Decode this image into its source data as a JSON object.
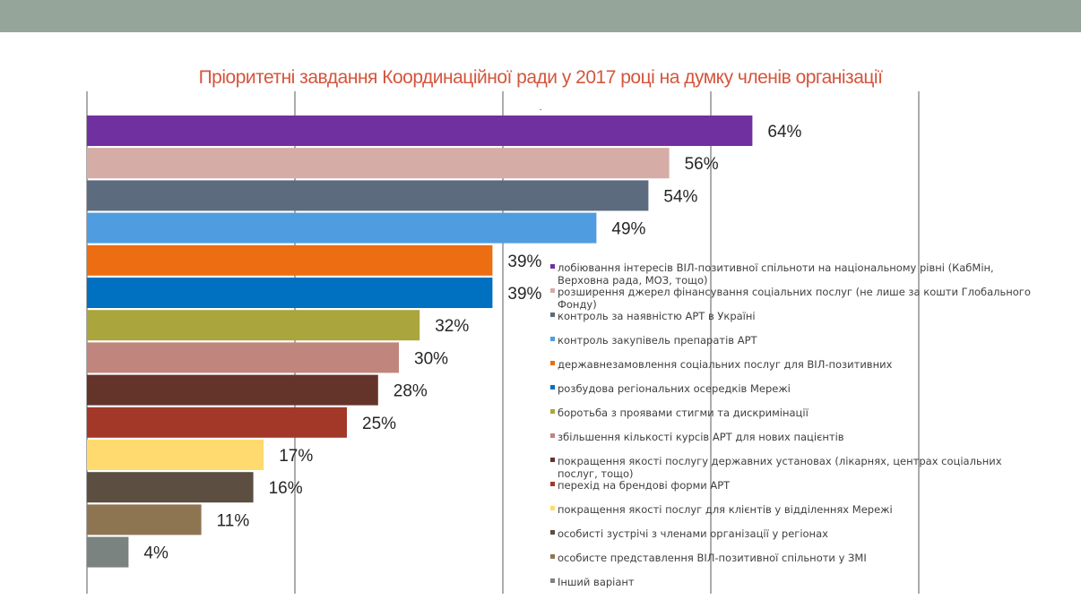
{
  "chart_data": {
    "type": "bar",
    "orientation": "horizontal",
    "title": "Пріоритетні завдання Координаційної ради у 2017 році на думку членів організації",
    "xlim": [
      0,
      80
    ],
    "grid": true,
    "legend_position": "right",
    "annotations": [
      "."
    ],
    "categories": [
      "лобіювання  інтересів  ВІЛ-позитивної  спільноти на національному  рівні (КабМін, Верховна рада, МОЗ, тощо)",
      "розширення джерел фінансування  соціальних послуг (не лише за кошти Глобального Фонду)",
      "контроль  за наявністю  АРТ в Україні",
      "контроль  закупівель  препаратів  АРТ",
      "державнезамовлення   соціальних послуг для ВІЛ-позитивних",
      "розбудова  регіональних  осередків Мережі",
      "боротьба  з проявами стигми та дискримінації",
      "збільшення  кількості курсів АРТ для нових пацієнтів",
      "покращення якості послугу державних установах (лікарнях, центрах  соціальних послуг, тощо)",
      "перехід  на брендові форми  АРТ",
      "покращення якості  послуг для клієнтів  у відділеннях Мережі",
      "особисті  зустрічі з членами  організації  у регіонах",
      "особисте  представлення  ВІЛ-позитивної  спільноти  у ЗМІ",
      "Інший варіант"
    ],
    "values": [
      64,
      56,
      54,
      49,
      39,
      39,
      32,
      30,
      28,
      25,
      17,
      16,
      11,
      4
    ],
    "value_labels": [
      "64%",
      "56%",
      "54%",
      "49%",
      "39%",
      "39%",
      "32%",
      "30%",
      "28%",
      "25%",
      "17%",
      "16%",
      "11%",
      "4%"
    ],
    "colors": [
      "#7030a0",
      "#d5aca6",
      "#5c6b7e",
      "#4f9de0",
      "#ec6d12",
      "#0070c0",
      "#aaa53c",
      "#c0857c",
      "#64342b",
      "#a33828",
      "#ffdb6f",
      "#5c4e40",
      "#8e7552",
      "#7a8380"
    ]
  }
}
